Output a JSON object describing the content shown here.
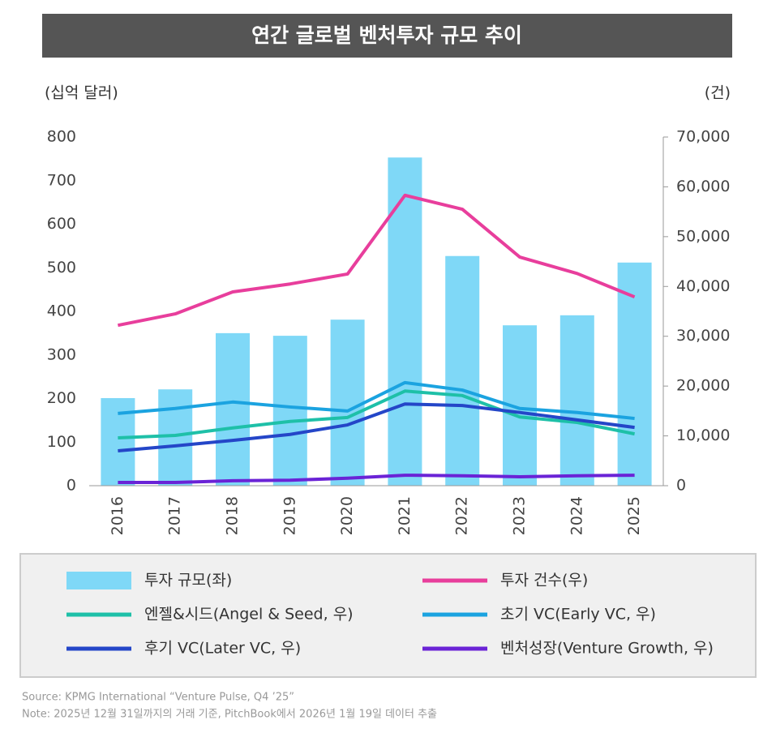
{
  "chart_data": {
    "type": "bar",
    "title": "연간 글로벌 벤처투자 규모 추이",
    "ylabel": "(십억 달러)",
    "y2label": "(건)",
    "categories": [
      "2016",
      "2017",
      "2018",
      "2019",
      "2020",
      "2021",
      "2022",
      "2023",
      "2024",
      "2025"
    ],
    "ylim": [
      0,
      800
    ],
    "yticks": [
      0,
      100,
      200,
      300,
      400,
      500,
      600,
      700,
      800
    ],
    "y2lim": [
      0,
      70000
    ],
    "y2ticks": [
      0,
      {
        "value": 10000,
        "label": "10,000"
      },
      {
        "value": 20000,
        "label": "20,000"
      },
      {
        "value": 30000,
        "label": "30,000"
      },
      {
        "value": 40000,
        "label": "40,000"
      },
      {
        "value": 50000,
        "label": "50,000"
      },
      {
        "value": 60000,
        "label": "60,000"
      },
      {
        "value": 70000,
        "label": "70,000"
      }
    ],
    "series": [
      {
        "name": "투자 규모(좌)",
        "type": "bar",
        "color": "#7fd8f7",
        "values": [
          201,
          221,
          350,
          344,
          381,
          753,
          527,
          368,
          391,
          512
        ]
      },
      {
        "name": "투자 건수(우)",
        "type": "line",
        "axis": "y2",
        "color": "#e83e9c",
        "values": [
          32200,
          34500,
          38900,
          40500,
          42500,
          58300,
          55500,
          45900,
          42600,
          37900
        ]
      },
      {
        "name": "엔젤&시드(Angel & Seed, 우)",
        "type": "line",
        "axis": "y2",
        "color": "#1ec0a8",
        "values": [
          9600,
          10100,
          11600,
          12900,
          13700,
          19000,
          18100,
          13800,
          12700,
          10400
        ]
      },
      {
        "name": "초기 VC(Early VC, 우)",
        "type": "line",
        "axis": "y2",
        "color": "#1ba3e0",
        "values": [
          14500,
          15500,
          16800,
          15800,
          15000,
          20700,
          19200,
          15500,
          14700,
          13500
        ]
      },
      {
        "name": "후기 VC(Later VC, 우)",
        "type": "line",
        "axis": "y2",
        "color": "#2446c8",
        "values": [
          7000,
          8000,
          9100,
          10300,
          12200,
          16400,
          16100,
          14700,
          13200,
          11700
        ]
      },
      {
        "name": "벤처성장(Venture Growth, 우)",
        "type": "line",
        "axis": "y2",
        "color": "#6a23d6",
        "values": [
          650,
          650,
          1000,
          1100,
          1500,
          2100,
          2000,
          1800,
          2000,
          2100
        ]
      }
    ],
    "notes": [
      "Source: KPMG International “Venture Pulse, Q4 ’25”",
      "Note: 2025년 12월 31일까지의 거래 기준, PitchBook에서 2026년 1월 19일 데이터 추출"
    ]
  }
}
